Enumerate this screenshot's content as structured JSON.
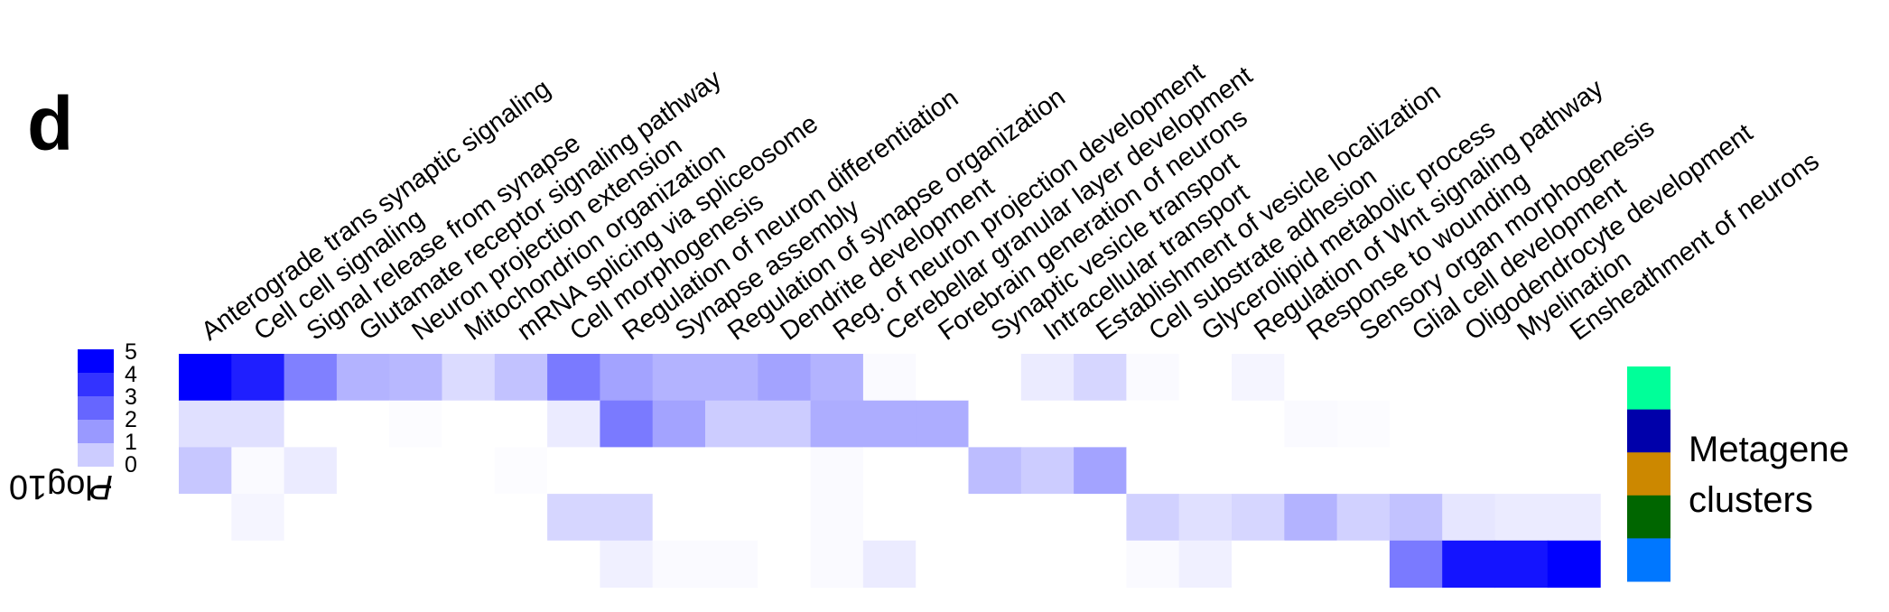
{
  "panel_label": "d",
  "colorbar": {
    "title_prefix": "−log10 ",
    "title_var": "P",
    "ticks": [
      "5",
      "4",
      "3",
      "2",
      "1",
      "0"
    ],
    "colors": [
      "#0000ff",
      "#3333ff",
      "#6666ff",
      "#9999ff",
      "#ccccff"
    ]
  },
  "legend": {
    "title_line1": "Metagene",
    "title_line2": "clusters",
    "cluster_colors": [
      "#00ff99",
      "#0000aa",
      "#cc8800",
      "#006600",
      "#0077ff"
    ]
  },
  "chart_data": {
    "type": "heatmap",
    "title": "",
    "value_label": "−log10 P",
    "value_range": [
      0,
      5
    ],
    "x": [
      "Anterograde trans synaptic signaling",
      "Cell cell signaling",
      "Signal release from synapse",
      "Glutamate receptor signaling pathway",
      "Neuron projection extension",
      "Mitochondrion organization",
      "mRNA splicing via spliceosome",
      "Cell morphogenesis",
      "Regulation of neuron differentiation",
      "Synapse assembly",
      "Regulation of synapse organization",
      "Dendrite development",
      "Reg. of neuron projection development",
      "Cerebellar granular layer development",
      "Forebrain generation of neurons",
      "Synaptic vesicle transport",
      "Intracellular transport",
      "Establishment of vesicle localization",
      "Cell substrate adhesion",
      "Glycerolipid metabolic process",
      "Regulation of Wnt signaling pathway",
      "Response to wounding",
      "Sensory organ morphogenesis",
      "Glial cell development",
      "Oligodendrocyte development",
      "Myelination",
      "Ensheathment of neurons"
    ],
    "row_clusters": [
      "cluster 1",
      "cluster 2",
      "cluster 3",
      "cluster 4",
      "cluster 5"
    ],
    "values": [
      [
        5.0,
        4.4,
        2.5,
        1.5,
        1.4,
        0.7,
        1.2,
        2.6,
        1.8,
        1.5,
        1.5,
        1.8,
        1.5,
        0.1,
        0,
        0,
        0.4,
        0.8,
        0.1,
        0,
        0.2,
        0,
        0,
        0,
        0,
        0,
        0
      ],
      [
        0.6,
        0.6,
        0,
        0,
        0.05,
        0,
        0,
        0.4,
        2.6,
        1.8,
        1.0,
        1.0,
        1.6,
        1.6,
        1.6,
        0,
        0,
        0,
        0,
        0,
        0,
        0.1,
        0.05,
        0,
        0,
        0,
        0
      ],
      [
        1.1,
        0.1,
        0.4,
        0,
        0,
        0,
        0.05,
        0,
        0,
        0,
        0,
        0,
        0.1,
        0,
        0,
        1.3,
        1.0,
        1.8,
        0,
        0,
        0,
        0,
        0,
        0,
        0,
        0,
        0
      ],
      [
        0,
        0.2,
        0,
        0,
        0,
        0,
        0,
        0.8,
        0.8,
        0,
        0,
        0,
        0.1,
        0,
        0,
        0,
        0,
        0,
        0.9,
        0.6,
        0.8,
        1.5,
        0.9,
        1.2,
        0.5,
        0.4,
        0.4
      ],
      [
        0,
        0,
        0,
        0,
        0,
        0,
        0,
        0,
        0.3,
        0.1,
        0.1,
        0,
        0.1,
        0.4,
        0,
        0,
        0,
        0,
        0.1,
        0.3,
        0,
        0,
        0,
        2.6,
        4.6,
        4.6,
        5.0
      ]
    ],
    "grid": false,
    "legend_position": "right"
  }
}
